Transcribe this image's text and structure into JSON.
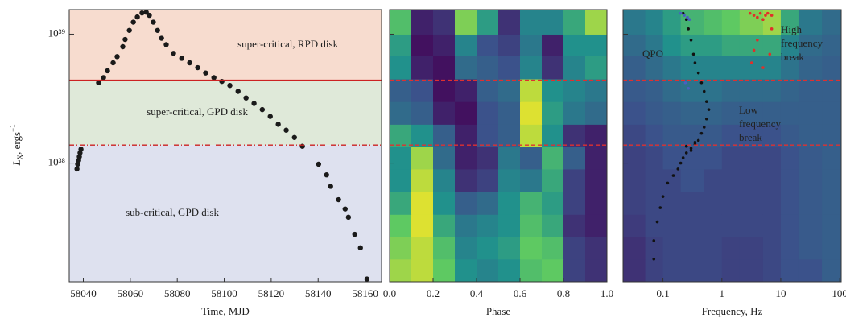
{
  "chart_data": [
    {
      "type": "scatter",
      "xlabel": "Time, MJD",
      "ylabel": {
        "main": "L",
        "sub": "X",
        "rest": ", ergs",
        "sup": "−1"
      },
      "xlim": [
        58034,
        58167
      ],
      "xticks": [
        58040,
        58060,
        58080,
        58100,
        58120,
        58140,
        58160
      ],
      "ylim": [
        1.2e+37,
        1.55e+39
      ],
      "log_y": true,
      "yticks": [
        {
          "value": 1e+38,
          "label": "10³⁸"
        },
        {
          "value": 1e+39,
          "label": "10³⁹"
        }
      ],
      "color": "#1a1a1a",
      "x": [
        58037.3,
        58037.6,
        58038.0,
        58038.3,
        58038.6,
        58039.0,
        58046.5,
        58048.6,
        58050.3,
        58052.7,
        58054.4,
        58056.8,
        58057.8,
        58059.6,
        58061.3,
        58063.0,
        58065.0,
        58066.8,
        58068.1,
        58069.8,
        58071.6,
        58073.3,
        58075.3,
        58078.4,
        58081.9,
        58085.3,
        58088.7,
        58092.1,
        58095.6,
        58099.0,
        58102.4,
        58105.9,
        58109.3,
        58112.7,
        58116.2,
        58119.6,
        58123.0,
        58126.4,
        58129.9,
        58133.3,
        58140.2,
        58143.6,
        58145.3,
        58148.7,
        58151.5,
        58152.9,
        58155.6,
        58158.0,
        58160.8
      ],
      "values": [
        9e+37,
        9.8e+37,
        1.05e+38,
        1.12e+38,
        1.2e+38,
        1.28e+38,
        4.2e+38,
        4.6e+38,
        5.2e+38,
        6e+38,
        6.7e+38,
        8e+38,
        9.1e+38,
        1.07e+39,
        1.24e+39,
        1.36e+39,
        1.46e+39,
        1.48e+39,
        1.4e+39,
        1.24e+39,
        1.07e+39,
        9.3e+38,
        8.3e+38,
        7.1e+38,
        6.5e+38,
        6e+38,
        5.5e+38,
        5e+38,
        4.6e+38,
        4.3e+38,
        4e+38,
        3.6e+38,
        3.2e+38,
        2.9e+38,
        2.6e+38,
        2.3e+38,
        2e+38,
        1.8e+38,
        1.58e+38,
        1.35e+38,
        9.8e+37,
        8.1e+37,
        6.6e+37,
        5.2e+37,
        4.4e+37,
        3.8e+37,
        2.8e+37,
        2.2e+37,
        1.26e+37
      ],
      "regions": [
        {
          "label": "super-critical, RPD disk",
          "range": [
            4.4e+38,
            1.55e+39
          ],
          "color": "#f7dccf"
        },
        {
          "label": "super-critical, GPD disk",
          "range": [
            1.38e+38,
            4.4e+38
          ],
          "color": "#dfe9d9"
        },
        {
          "label": "sub-critical, GPD disk",
          "range": [
            1.2e+37,
            1.38e+38
          ],
          "color": "#dee1ef"
        }
      ],
      "thresholds": [
        {
          "value": 4.4e+38,
          "dash": "solid"
        },
        {
          "value": 1.38e+38,
          "dash": "dashdot"
        }
      ],
      "threshold_color": "#cc2222"
    },
    {
      "type": "heatmap",
      "xlabel": "Phase",
      "xlim": [
        0,
        1
      ],
      "xticks": [
        {
          "value": 0,
          "label": "0.0"
        },
        0.2,
        0.4,
        0.6,
        0.8,
        {
          "value": 1,
          "label": "1.0"
        }
      ],
      "ylim": [
        1.2e+37,
        1.55e+39
      ],
      "log_y": true,
      "yticks": [
        1e+38,
        1e+39
      ],
      "colormap": "viridis",
      "xbins": [
        0,
        0.1,
        0.2,
        0.3,
        0.4,
        0.5,
        0.6,
        0.7,
        0.8,
        0.9,
        1.0
      ],
      "ybins": [
        1.2e+37,
        1.8e+37,
        2.7e+37,
        4e+37,
        6e+37,
        9e+37,
        1.35e+38,
        2e+38,
        3e+38,
        4.5e+38,
        6.8e+38,
        1e+39,
        1.55e+39
      ],
      "z": [
        [
          0.85,
          0.9,
          0.75,
          0.5,
          0.45,
          0.5,
          0.7,
          0.75,
          0.2,
          0.15
        ],
        [
          0.8,
          0.9,
          0.7,
          0.45,
          0.5,
          0.55,
          0.75,
          0.7,
          0.2,
          0.15
        ],
        [
          0.75,
          0.95,
          0.6,
          0.4,
          0.45,
          0.5,
          0.7,
          0.6,
          0.15,
          0.1
        ],
        [
          0.6,
          0.95,
          0.5,
          0.3,
          0.35,
          0.5,
          0.65,
          0.55,
          0.2,
          0.1
        ],
        [
          0.5,
          0.9,
          0.45,
          0.15,
          0.2,
          0.45,
          0.4,
          0.6,
          0.2,
          0.1
        ],
        [
          0.5,
          0.85,
          0.35,
          0.1,
          0.15,
          0.4,
          0.3,
          0.65,
          0.3,
          0.1
        ],
        [
          0.6,
          0.5,
          0.3,
          0.1,
          0.25,
          0.3,
          0.9,
          0.5,
          0.15,
          0.1
        ],
        [
          0.35,
          0.3,
          0.1,
          0.05,
          0.25,
          0.3,
          0.95,
          0.55,
          0.4,
          0.35
        ],
        [
          0.3,
          0.25,
          0.05,
          0.1,
          0.3,
          0.35,
          0.9,
          0.5,
          0.45,
          0.4
        ],
        [
          0.5,
          0.1,
          0.05,
          0.35,
          0.3,
          0.25,
          0.45,
          0.15,
          0.45,
          0.55
        ],
        [
          0.55,
          0.05,
          0.1,
          0.45,
          0.25,
          0.2,
          0.4,
          0.1,
          0.5,
          0.5
        ],
        [
          0.7,
          0.1,
          0.15,
          0.8,
          0.55,
          0.15,
          0.45,
          0.45,
          0.6,
          0.85
        ]
      ],
      "thresholds": [
        {
          "value": 4.4e+38,
          "dash": "dashed"
        },
        {
          "value": 1.38e+38,
          "dash": "dashed"
        }
      ],
      "threshold_color": "#e03030"
    },
    {
      "type": "heatmap",
      "xlabel": "Frequency, Hz",
      "log_x": true,
      "xlim": [
        0.021,
        106
      ],
      "xticks": [
        0.1,
        1,
        10,
        100
      ],
      "ylim": [
        1.2e+37,
        1.55e+39
      ],
      "log_y": true,
      "yticks": [
        1e+38,
        1e+39
      ],
      "colormap": "viridis",
      "xbins": [
        0.021,
        0.05,
        0.1,
        0.2,
        0.5,
        1,
        2,
        5,
        10,
        20,
        50,
        106
      ],
      "ybins": [
        1.2e+37,
        1.8e+37,
        2.7e+37,
        4e+37,
        6e+37,
        9e+37,
        1.35e+38,
        2e+38,
        3e+38,
        4.5e+38,
        6.8e+38,
        1e+39,
        1.55e+39
      ],
      "z": [
        [
          0.15,
          0.2,
          0.22,
          0.22,
          0.22,
          0.2,
          0.2,
          0.22,
          0.25,
          0.25,
          0.3
        ],
        [
          0.15,
          0.2,
          0.22,
          0.22,
          0.22,
          0.2,
          0.2,
          0.22,
          0.25,
          0.28,
          0.3
        ],
        [
          0.18,
          0.22,
          0.22,
          0.22,
          0.22,
          0.22,
          0.22,
          0.22,
          0.25,
          0.28,
          0.3
        ],
        [
          0.2,
          0.22,
          0.22,
          0.22,
          0.22,
          0.22,
          0.22,
          0.22,
          0.25,
          0.28,
          0.3
        ],
        [
          0.2,
          0.22,
          0.22,
          0.25,
          0.22,
          0.22,
          0.22,
          0.22,
          0.25,
          0.28,
          0.3
        ],
        [
          0.2,
          0.22,
          0.25,
          0.25,
          0.25,
          0.22,
          0.22,
          0.22,
          0.25,
          0.28,
          0.3
        ],
        [
          0.22,
          0.25,
          0.28,
          0.28,
          0.28,
          0.25,
          0.25,
          0.25,
          0.28,
          0.3,
          0.3
        ],
        [
          0.25,
          0.28,
          0.3,
          0.32,
          0.32,
          0.3,
          0.3,
          0.3,
          0.3,
          0.3,
          0.3
        ],
        [
          0.28,
          0.3,
          0.35,
          0.38,
          0.38,
          0.35,
          0.35,
          0.35,
          0.32,
          0.3,
          0.3
        ],
        [
          0.3,
          0.35,
          0.4,
          0.45,
          0.45,
          0.45,
          0.45,
          0.45,
          0.38,
          0.32,
          0.3
        ],
        [
          0.35,
          0.4,
          0.5,
          0.55,
          0.55,
          0.6,
          0.6,
          0.6,
          0.45,
          0.35,
          0.32
        ],
        [
          0.4,
          0.45,
          0.55,
          0.65,
          0.7,
          0.75,
          0.8,
          0.85,
          0.6,
          0.4,
          0.35
        ]
      ],
      "series": [
        {
          "color": "#111111",
          "x": [
            0.22,
            0.25,
            0.27,
            0.3,
            0.33,
            0.35,
            0.4,
            0.45,
            0.5,
            0.55,
            0.6,
            0.55,
            0.5,
            0.45,
            0.4,
            0.35,
            0.3,
            0.25,
            0.22,
            0.2,
            0.18,
            0.15,
            0.12,
            0.1,
            0.09,
            0.08,
            0.07,
            0.07,
            0.25,
            0.3,
            0.35
          ],
          "values": [
            1.45e+39,
            1.3e+39,
            1.1e+39,
            9e+38,
            7e+38,
            6e+38,
            5e+38,
            4.2e+38,
            3.6e+38,
            3e+38,
            2.6e+38,
            2.2e+38,
            1.9e+38,
            1.7e+38,
            1.5e+38,
            1.4e+38,
            1.3e+38,
            1.2e+38,
            1.1e+38,
            1e+38,
            9e+37,
            8e+37,
            7e+37,
            5.5e+37,
            4.5e+37,
            3.5e+37,
            2.5e+37,
            1.8e+37,
            1.35e+38,
            1.25e+38,
            1.45e+38
          ]
        },
        {
          "color": "#4a5fc1",
          "x": [
            0.2,
            0.23,
            0.26,
            0.28,
            0.24,
            0.27
          ],
          "values": [
            1.45e+39,
            1.4e+39,
            1.35e+39,
            1.3e+39,
            4.2e+38,
            3.8e+38
          ]
        },
        {
          "color": "#e0302a",
          "x": [
            3,
            3.5,
            4,
            4.5,
            5,
            5.5,
            6,
            7,
            4,
            3.5,
            3.2,
            5,
            6.5,
            7
          ],
          "values": [
            1.45e+39,
            1.4e+39,
            1.35e+39,
            1.45e+39,
            1.3e+39,
            1.4e+39,
            1.45e+39,
            1.4e+39,
            9e+38,
            7.5e+38,
            6e+38,
            5.5e+38,
            7e+38,
            1.1e+39
          ]
        }
      ],
      "annotations": [
        {
          "lines": [
            "QPO"
          ],
          "color": "#4a5fc1"
        },
        {
          "lines": [
            "High",
            "frequency",
            "break"
          ],
          "color": "#e0302a"
        },
        {
          "lines": [
            "Low",
            "frequency",
            "break"
          ],
          "color": "#111111"
        }
      ],
      "thresholds": [
        {
          "value": 4.4e+38,
          "dash": "dashed"
        },
        {
          "value": 1.38e+38,
          "dash": "dashed"
        }
      ],
      "threshold_color": "#e03030"
    }
  ]
}
